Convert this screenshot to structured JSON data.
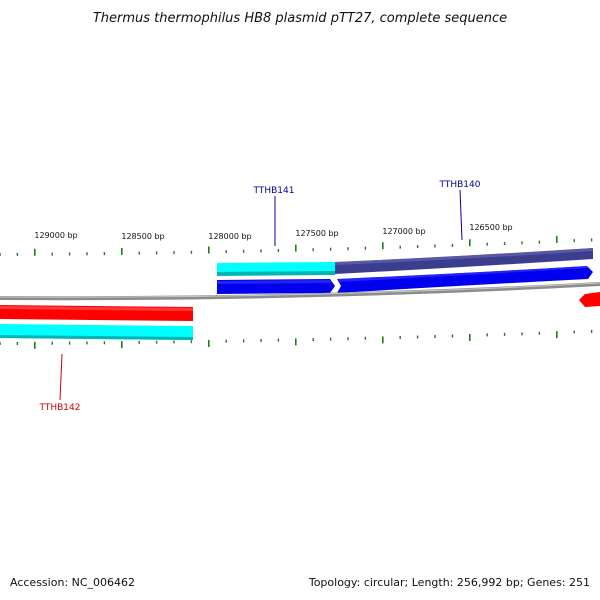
{
  "title": "Thermus thermophilus HB8 plasmid pTT27, complete sequence",
  "footer": {
    "accession": "Accession: NC_006462",
    "summary": "Topology: circular; Length: 256,992 bp; Genes: 251"
  },
  "scale": {
    "labels": [
      "129000 bp",
      "128500 bp",
      "128000 bp",
      "127500 bp",
      "127000 bp",
      "126500 bp"
    ]
  },
  "genes": [
    {
      "name": "TTHB141",
      "color": "#000099"
    },
    {
      "name": "TTHB140",
      "color": "#000099"
    },
    {
      "name": "TTHB142",
      "color": "#cc0000"
    }
  ],
  "colors": {
    "backbone": "#8c8c8c",
    "forward_gene": "#0000ee",
    "reverse_gene": "#ff0000",
    "cds_cyan": "#00ffff",
    "cds_slate": "#3d3d8f",
    "tick": "#1a7f1a"
  }
}
